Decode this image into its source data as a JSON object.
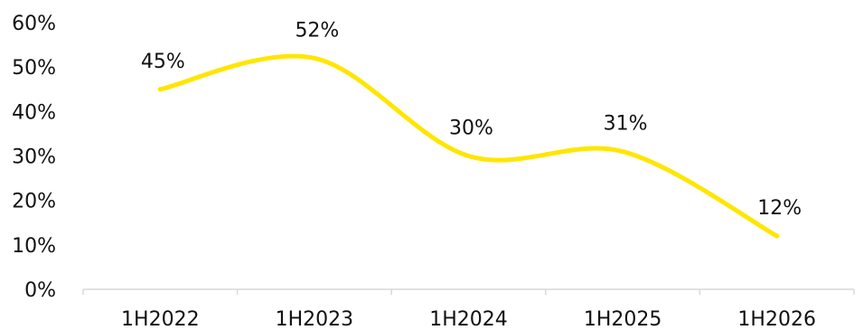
{
  "chart_data": {
    "type": "line",
    "categories": [
      "1H2022",
      "1H2023",
      "1H2024",
      "1H2025",
      "1H2026"
    ],
    "series": [
      {
        "values": [
          45,
          52,
          30,
          31,
          12
        ],
        "color": "#FFE600",
        "data_labels": [
          "45%",
          "52%",
          "30%",
          "31%",
          "12%"
        ]
      }
    ],
    "ylim": [
      0,
      60
    ],
    "yticks": [
      0,
      10,
      20,
      30,
      40,
      50,
      60
    ],
    "ytick_labels": [
      "0%",
      "10%",
      "20%",
      "30%",
      "40%",
      "50%",
      "60%"
    ],
    "grid": false,
    "line_style": "smooth"
  }
}
